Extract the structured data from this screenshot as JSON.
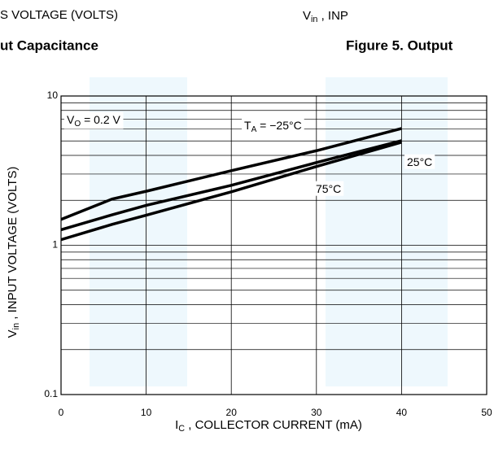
{
  "header": {
    "left_axis_label": "S VOLTAGE (VOLTS)",
    "left_caption": "ut Capacitance",
    "right_axis_label": {
      "main": "V",
      "sub": "in",
      "tail": " , INP"
    },
    "right_caption": "Figure 5. Output"
  },
  "chart_data": {
    "type": "line",
    "x_label": {
      "main": "I",
      "sub": "C",
      "tail": " , COLLECTOR CURRENT (mA)"
    },
    "y_label": {
      "main": "V",
      "sub": "in",
      "tail": " , INPUT VOLTAGE (VOLTS)"
    },
    "x": [
      0,
      6,
      10,
      20,
      30,
      40
    ],
    "series": [
      {
        "label": {
          "main": "T",
          "sub": "A",
          "tail": " = −25°C"
        },
        "color": "#000000",
        "values": [
          1.49,
          2.04,
          2.3,
          3.16,
          4.3,
          6.06
        ]
      },
      {
        "label": {
          "main": "25°C"
        },
        "color": "#000000",
        "values": [
          1.27,
          1.6,
          1.85,
          2.52,
          3.58,
          5.02
        ]
      },
      {
        "label": {
          "main": "75°C"
        },
        "color": "#000000",
        "values": [
          1.09,
          1.38,
          1.59,
          2.28,
          3.37,
          4.9
        ]
      }
    ],
    "annotations": [
      {
        "main": "V",
        "sub": "O",
        "tail": " = 0.2 V"
      }
    ],
    "xlim": [
      0,
      50
    ],
    "xticks": [
      0,
      10,
      20,
      30,
      40,
      50
    ],
    "ylim": [
      0.1,
      10
    ],
    "yticks": [
      0.1,
      1,
      10
    ],
    "log_y": true,
    "grid": true,
    "y_minor_grid": [
      0.2,
      0.3,
      0.4,
      0.5,
      0.6,
      0.7,
      0.8,
      0.9,
      2,
      3,
      4,
      5,
      6,
      7,
      8,
      9
    ]
  }
}
